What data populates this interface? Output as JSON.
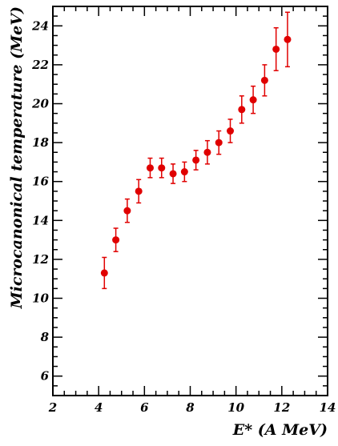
{
  "chart_data": {
    "type": "scatter",
    "xlabel": "E* (A MeV)",
    "ylabel": "Microcanonical temperature (MeV)",
    "xlim": [
      2,
      14
    ],
    "ylim": [
      5,
      25
    ],
    "x_ticks": [
      "2",
      "4",
      "6",
      "8",
      "10",
      "12",
      "14"
    ],
    "y_ticks": [
      "6",
      "8",
      "10",
      "12",
      "14",
      "16",
      "18",
      "20",
      "22",
      "24"
    ],
    "grid": false,
    "marker_color": "#e00000",
    "series": [
      {
        "x": [
          4.25,
          4.75,
          5.25,
          5.75,
          6.25,
          6.75,
          7.25,
          7.75,
          8.25,
          8.75,
          9.25,
          9.75,
          10.25,
          10.75,
          11.25,
          11.75,
          12.25
        ],
        "y": [
          11.3,
          13.0,
          14.5,
          15.5,
          16.7,
          16.7,
          16.4,
          16.5,
          17.1,
          17.5,
          18.0,
          18.6,
          19.7,
          20.2,
          21.2,
          22.8,
          23.3
        ],
        "err_upper": [
          0.8,
          0.6,
          0.6,
          0.6,
          0.5,
          0.5,
          0.5,
          0.5,
          0.5,
          0.6,
          0.6,
          0.6,
          0.7,
          0.7,
          0.8,
          1.1,
          1.4
        ],
        "err_lower": [
          0.8,
          0.6,
          0.6,
          0.6,
          0.5,
          0.5,
          0.5,
          0.5,
          0.5,
          0.6,
          0.6,
          0.6,
          0.7,
          0.7,
          0.8,
          1.1,
          1.4
        ]
      }
    ]
  }
}
